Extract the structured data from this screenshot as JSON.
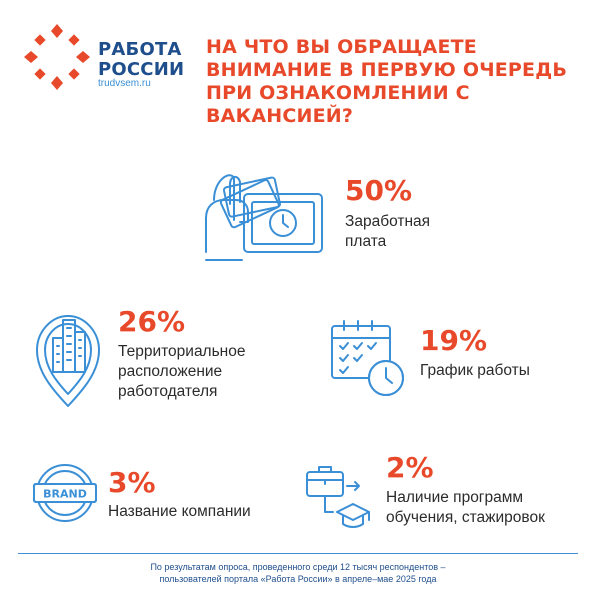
{
  "logo": {
    "line1": "РАБОТА",
    "line2": "РОССИИ",
    "url": "trudvsem.ru",
    "mark_color": "#e8492a",
    "text_color": "#1f4e8c"
  },
  "headline": "НА ЧТО ВЫ ОБРАЩАЕТЕ ВНИМАНИЕ В ПЕРВУЮ ОЧЕРЕДЬ ПРИ ОЗНАКОМЛЕНИИ С ВАКАНСИЕЙ?",
  "colors": {
    "accent": "#e8492a",
    "icon": "#3a8fd6",
    "text": "#2b2b2b",
    "footer": "#1f4e8c"
  },
  "chart_data": {
    "type": "table",
    "title": "НА ЧТО ВЫ ОБРАЩАЕТЕ ВНИМАНИЕ В ПЕРВУЮ ОЧЕРЕДЬ ПРИ ОЗНАКОМЛЕНИИ С ВАКАНСИЕЙ?",
    "items": [
      {
        "value_label": "50%",
        "value": 50,
        "label": "Заработная плата",
        "label_lines": [
          "Заработная",
          "плата"
        ],
        "icon": "money-icon"
      },
      {
        "value_label": "26%",
        "value": 26,
        "label": "Территориальное расположение работодателя",
        "label_lines": [
          "Территориальное",
          "расположение",
          "работодателя"
        ],
        "icon": "location-pin-icon"
      },
      {
        "value_label": "19%",
        "value": 19,
        "label": "График работы",
        "label_lines": [
          "График работы"
        ],
        "icon": "calendar-clock-icon"
      },
      {
        "value_label": "3%",
        "value": 3,
        "label": "Название компании",
        "label_lines": [
          "Название компании"
        ],
        "icon": "brand-badge-icon"
      },
      {
        "value_label": "2%",
        "value": 2,
        "label": "Наличие программ обучения, стажировок",
        "label_lines": [
          "Наличие программ",
          "обучения, стажировок"
        ],
        "icon": "briefcase-graduation-icon"
      }
    ]
  },
  "icons": {
    "brand_text": "BRAND"
  },
  "footer": {
    "line1": "По результатам опроса, проведенного среди 12 тысяч респондентов –",
    "line2": "пользователей портала «Работа России» в апреле–мае 2025 года"
  }
}
